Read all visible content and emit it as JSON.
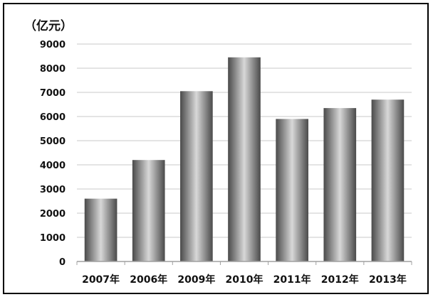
{
  "chart_data": {
    "type": "bar",
    "title": "",
    "unit_label": "（亿元）",
    "xlabel": "",
    "ylabel": "",
    "categories": [
      "2007年",
      "2006年",
      "2009年",
      "2010年",
      "2011年",
      "2012年",
      "2013年"
    ],
    "values": [
      2600,
      4200,
      7050,
      8450,
      5900,
      6350,
      6700
    ],
    "ylim": [
      0,
      9000
    ],
    "yticks": [
      "0",
      "1000",
      "2000",
      "3000",
      "4000",
      "5000",
      "6000",
      "7000",
      "8000",
      "9000"
    ],
    "grid": true,
    "legend": "none",
    "bar_colors": {
      "dark": "#4a4a4a",
      "light": "#d8d8d8"
    },
    "grid_color": "#c8c8c8",
    "axis_color": "#a0a0a0"
  }
}
